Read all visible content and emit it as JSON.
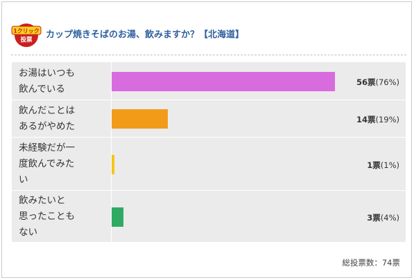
{
  "badge": {
    "line1": "1クリック",
    "line2": "投票"
  },
  "title": "カップ焼きそばのお湯、飲みますか？【北海道】",
  "options": [
    {
      "label_lines": [
        "お湯はいつも",
        "飲んでいる"
      ],
      "votes": "56",
      "unit": "票",
      "percent": "(76%)",
      "share": 0.76,
      "color": "#d86cdf"
    },
    {
      "label_lines": [
        "飲んだことは",
        "あるがやめた"
      ],
      "votes": "14",
      "unit": "票",
      "percent": "(19%)",
      "share": 0.19,
      "color": "#f29b1a"
    },
    {
      "label_lines": [
        "未経験だが一",
        "度飲んでみた",
        "い"
      ],
      "votes": "1",
      "unit": "票",
      "percent": "(1%)",
      "share": 0.01,
      "color": "#f5c518"
    },
    {
      "label_lines": [
        "飲みたいと",
        "思ったことも",
        "ない"
      ],
      "votes": "3",
      "unit": "票",
      "percent": "(4%)",
      "share": 0.04,
      "color": "#2eaa64"
    }
  ],
  "total": "総投票数：74票"
}
